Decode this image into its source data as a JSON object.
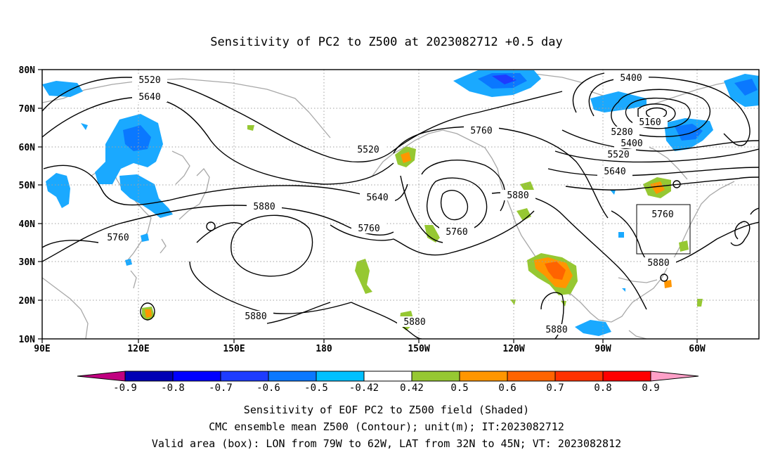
{
  "title": "Sensitivity of PC2 to Z500 at 2023082712 +0.5 day",
  "axes": {
    "lat_ticks": [
      "80N",
      "70N",
      "60N",
      "50N",
      "40N",
      "30N",
      "20N",
      "10N"
    ],
    "lon_ticks": [
      "90E",
      "120E",
      "150E",
      "180",
      "150W",
      "120W",
      "90W",
      "60W"
    ]
  },
  "contour_labels": [
    {
      "text": "5520"
    },
    {
      "text": "5640"
    },
    {
      "text": "5760"
    },
    {
      "text": "5880"
    },
    {
      "text": "5880"
    },
    {
      "text": "5520"
    },
    {
      "text": "5640"
    },
    {
      "text": "5760"
    },
    {
      "text": "5760"
    },
    {
      "text": "5760"
    },
    {
      "text": "5880"
    },
    {
      "text": "5880"
    },
    {
      "text": "5400"
    },
    {
      "text": "5160"
    },
    {
      "text": "5280"
    },
    {
      "text": "5400"
    },
    {
      "text": "5520"
    },
    {
      "text": "5640"
    },
    {
      "text": "5760"
    },
    {
      "text": "5880"
    },
    {
      "text": "5880"
    }
  ],
  "colorbar": {
    "colors": [
      "#c00080",
      "#0000b4",
      "#0000ff",
      "#1e3cff",
      "#0a78ff",
      "#00c0ff",
      "#ffffff",
      "#96c832",
      "#ff9600",
      "#ff6400",
      "#ff3200",
      "#ff0000",
      "#ffa0c8"
    ],
    "labels": [
      "-0.9",
      "-0.8",
      "-0.7",
      "-0.6",
      "-0.5",
      "-0.42",
      "0.42",
      "0.5",
      "0.6",
      "0.7",
      "0.8",
      "0.9"
    ]
  },
  "shading_colors": {
    "blue_light": "#1aa9ff",
    "blue_mid": "#0a78ff",
    "blue_dark": "#1e3cff",
    "green": "#96c832",
    "orange": "#ff9600",
    "red_orange": "#ff6400"
  },
  "captions": {
    "line1": "Sensitivity of EOF PC2 to Z500 field (Shaded)",
    "line2": "CMC ensemble mean Z500 (Contour); unit(m); IT:2023082712",
    "line3": "Valid area (box): LON from 79W to 62W, LAT from 32N to 45N; VT: 2023082812"
  }
}
